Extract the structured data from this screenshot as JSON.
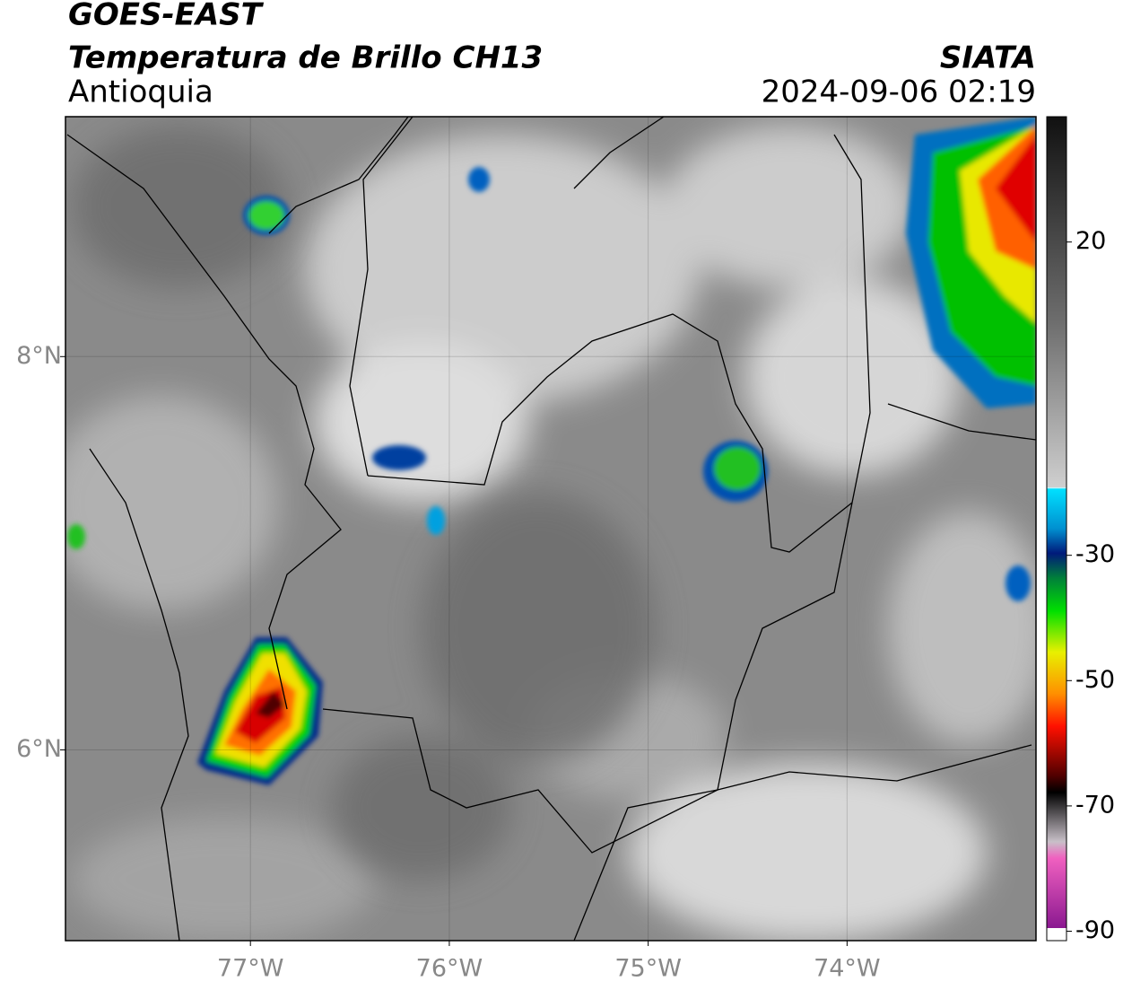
{
  "header": {
    "satellite": "GOES-EAST",
    "title": "Temperatura de Brillo CH13",
    "region": "Antioquia",
    "organization": "SIATA",
    "datetime": "2024-09-06 02:19"
  },
  "map": {
    "xlim": [
      -77.93,
      -73.05
    ],
    "ylim": [
      5.03,
      9.22
    ],
    "xticks": [
      {
        "value": -77,
        "label": "77°W"
      },
      {
        "value": -76,
        "label": "76°W"
      },
      {
        "value": -75,
        "label": "75°W"
      },
      {
        "value": -74,
        "label": "74°W"
      }
    ],
    "yticks": [
      {
        "value": 6,
        "label": "6°N"
      },
      {
        "value": 8,
        "label": "8°N"
      }
    ]
  },
  "colorbar": {
    "lim": [
      40,
      -91.5
    ],
    "ticks": [
      20,
      -30,
      -50,
      -70,
      -90
    ]
  }
}
